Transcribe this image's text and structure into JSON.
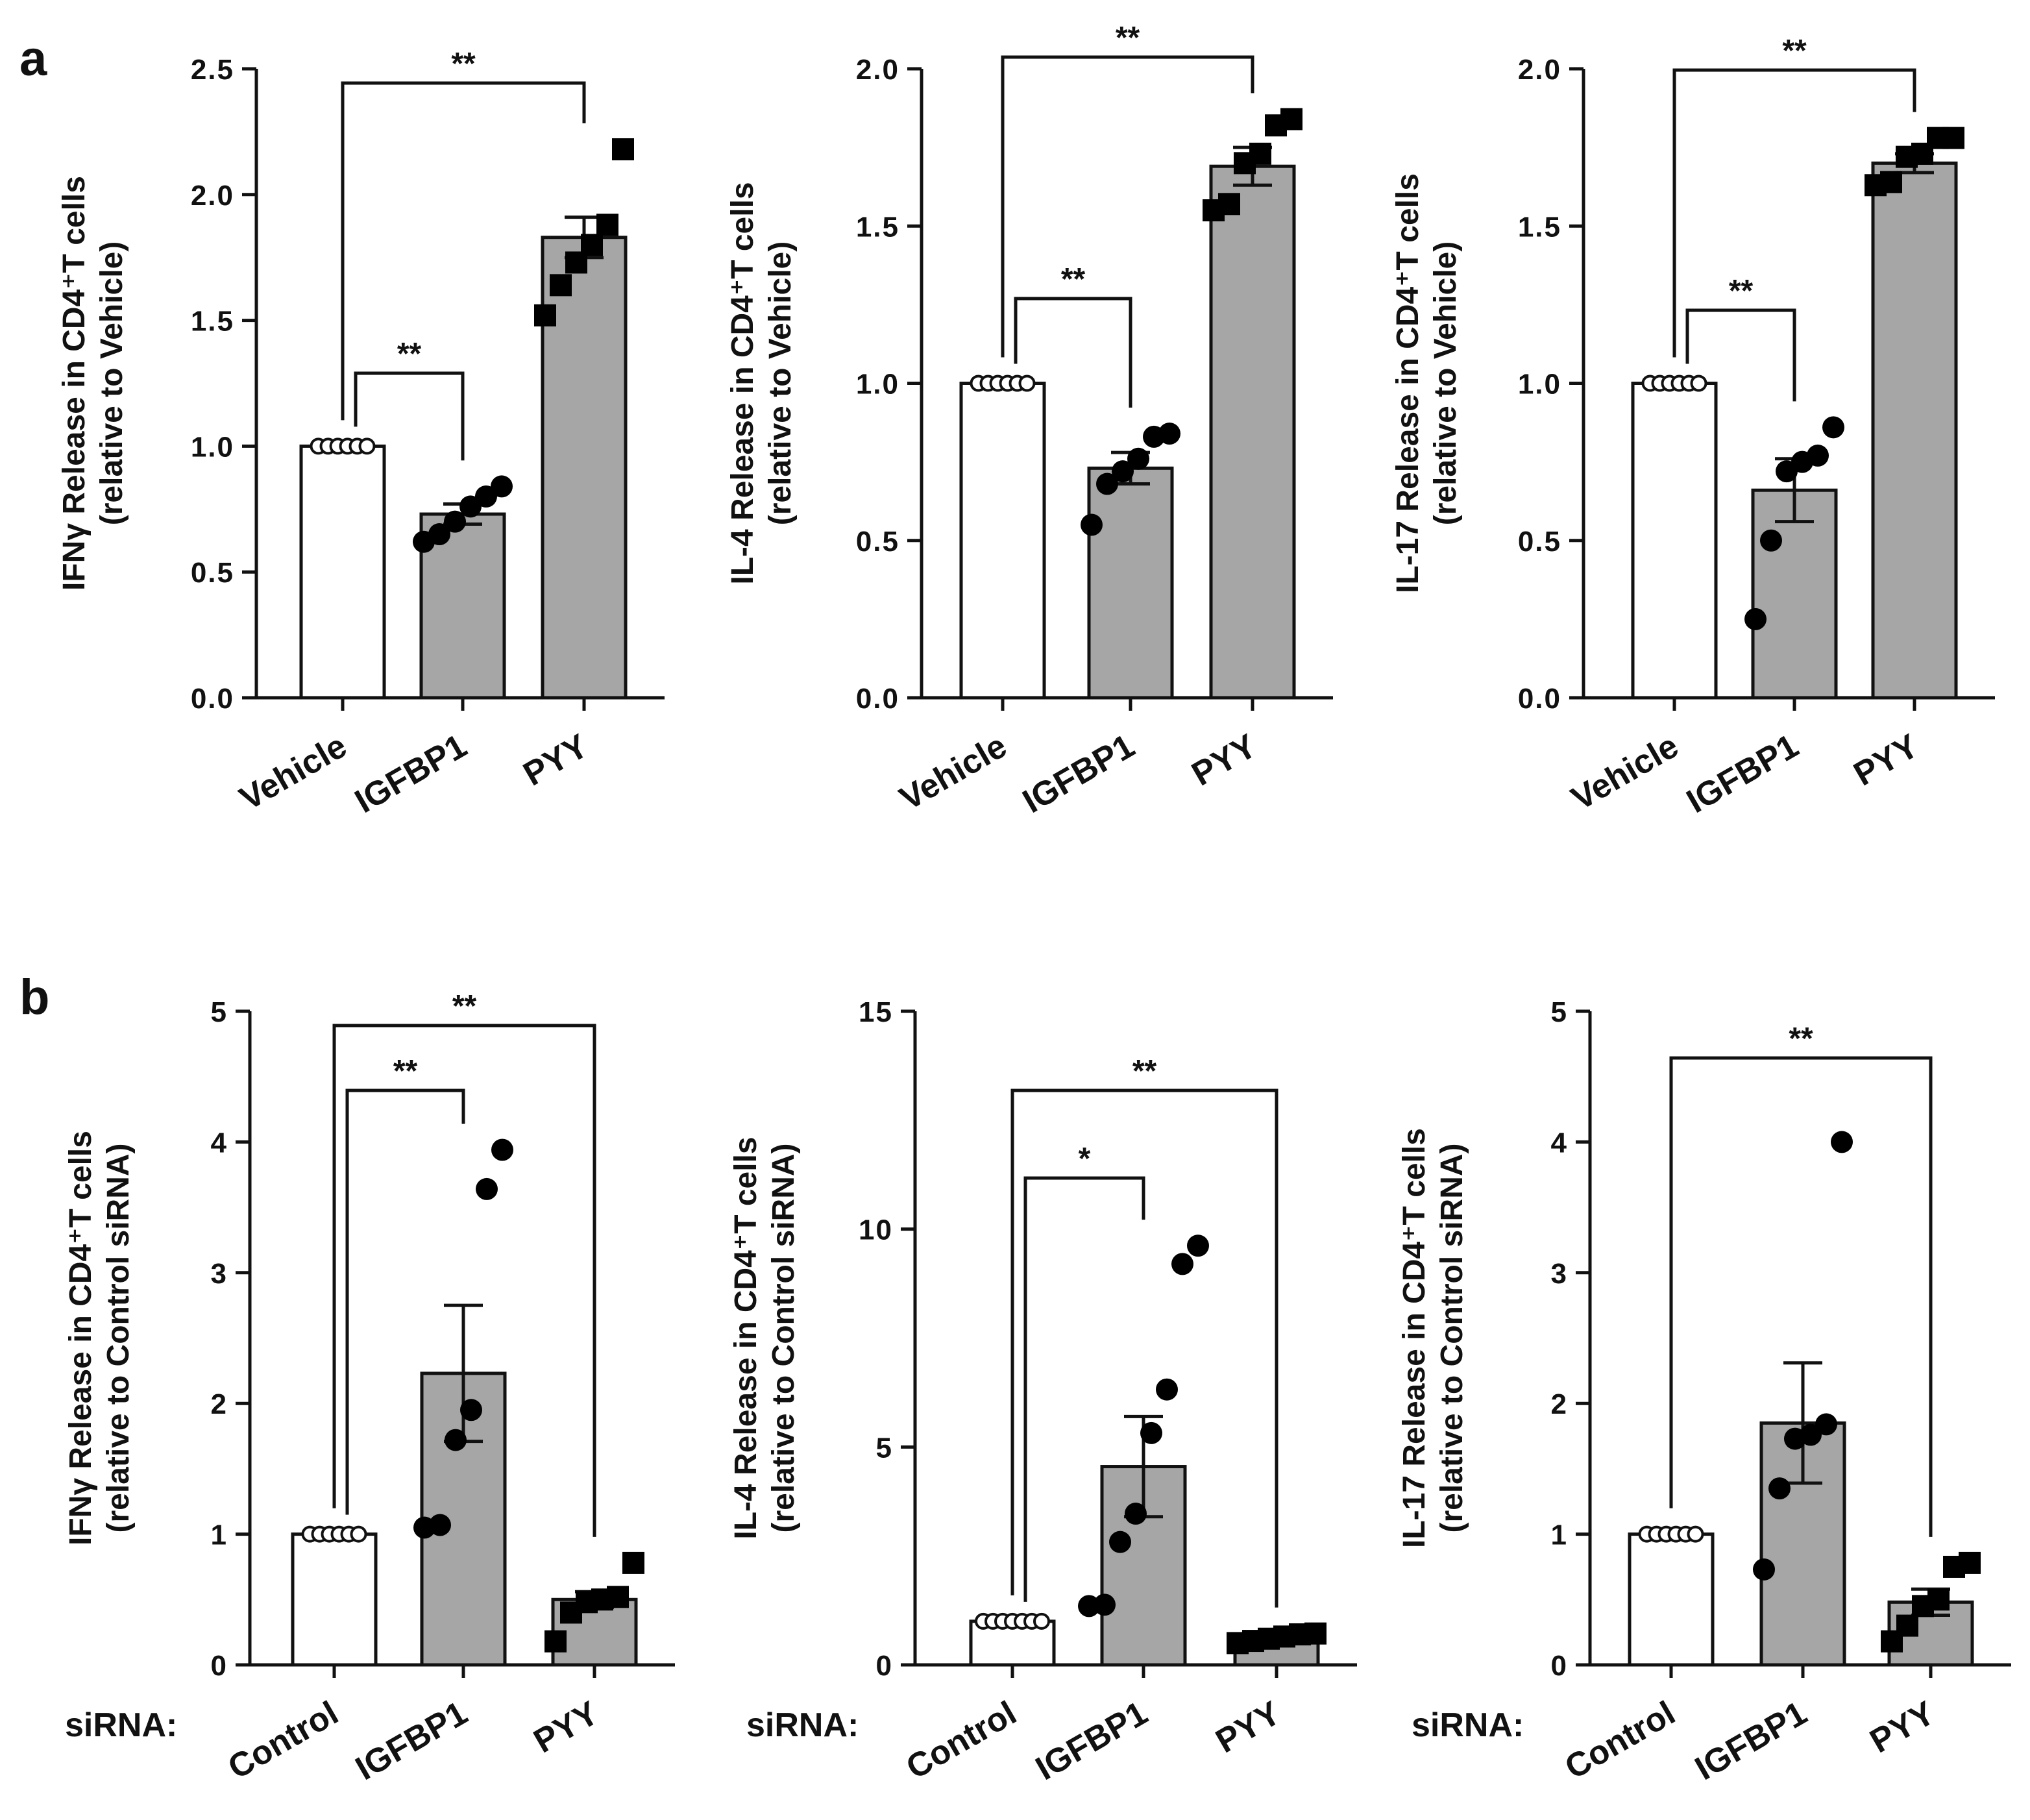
{
  "panels": [
    {
      "letter": "a"
    },
    {
      "letter": "b"
    }
  ],
  "chart_data": [
    {
      "type": "bar",
      "panel": "a",
      "categories": [
        "Vehicle",
        "IGFBP1",
        "PYY"
      ],
      "ylabel": [
        "IFNγ Release in CD4⁺T cells",
        "(relative to Vehicle)"
      ],
      "ylim": [
        0,
        2.5
      ],
      "yticks": [
        "0.0",
        "0.5",
        "1.0",
        "1.5",
        "2.0",
        "2.5"
      ],
      "category_prefix": "",
      "bar_fill": [
        "#ffffff",
        "#a6a6a6",
        "#a6a6a6"
      ],
      "marker": "circle-open-then-square",
      "series": [
        {
          "values": [
            1.0,
            0.73,
            1.83
          ],
          "sem": [
            0,
            0.04,
            0.08
          ],
          "points": [
            [
              1,
              1,
              1,
              1,
              1,
              1
            ],
            [
              0.62,
              0.65,
              0.7,
              0.76,
              0.8,
              0.84
            ],
            [
              1.52,
              1.64,
              1.73,
              1.8,
              1.88,
              2.18
            ]
          ]
        }
      ],
      "significance": [
        {
          "from": 0,
          "to": 1,
          "label": "**"
        },
        {
          "from": 0,
          "to": 2,
          "label": "**"
        }
      ]
    },
    {
      "type": "bar",
      "panel": "a",
      "categories": [
        "Vehicle",
        "IGFBP1",
        "PYY"
      ],
      "ylabel": [
        "IL-4 Release in CD4⁺T cells",
        "(relative to Vehicle)"
      ],
      "ylim": [
        0,
        2.0
      ],
      "yticks": [
        "0.0",
        "0.5",
        "1.0",
        "1.5",
        "2.0"
      ],
      "category_prefix": "",
      "bar_fill": [
        "#ffffff",
        "#a6a6a6",
        "#a6a6a6"
      ],
      "marker": "circle-open-then-square",
      "series": [
        {
          "values": [
            1.0,
            0.73,
            1.69
          ],
          "sem": [
            0,
            0.05,
            0.06
          ],
          "points": [
            [
              1,
              1,
              1,
              1,
              1,
              1
            ],
            [
              0.55,
              0.68,
              0.72,
              0.76,
              0.83,
              0.84
            ],
            [
              1.55,
              1.57,
              1.7,
              1.73,
              1.82,
              1.84
            ]
          ]
        }
      ],
      "significance": [
        {
          "from": 0,
          "to": 1,
          "label": "**"
        },
        {
          "from": 0,
          "to": 2,
          "label": "**"
        }
      ]
    },
    {
      "type": "bar",
      "panel": "a",
      "categories": [
        "Vehicle",
        "IGFBP1",
        "PYY"
      ],
      "ylabel": [
        "IL-17 Release in CD4⁺T cells",
        "(relative to Vehicle)"
      ],
      "ylim": [
        0,
        2.0
      ],
      "yticks": [
        "0.0",
        "0.5",
        "1.0",
        "1.5",
        "2.0"
      ],
      "category_prefix": "",
      "bar_fill": [
        "#ffffff",
        "#a6a6a6",
        "#a6a6a6"
      ],
      "marker": "circle-open-then-square",
      "series": [
        {
          "values": [
            1.0,
            0.66,
            1.7
          ],
          "sem": [
            0,
            0.1,
            0.03
          ],
          "points": [
            [
              1,
              1,
              1,
              1,
              1,
              1
            ],
            [
              0.25,
              0.5,
              0.72,
              0.75,
              0.77,
              0.86
            ],
            [
              1.63,
              1.64,
              1.72,
              1.73,
              1.78,
              1.78
            ]
          ]
        }
      ],
      "significance": [
        {
          "from": 0,
          "to": 1,
          "label": "**"
        },
        {
          "from": 0,
          "to": 2,
          "label": "**"
        }
      ]
    },
    {
      "type": "bar",
      "panel": "b",
      "categories": [
        "Control",
        "IGFBP1",
        "PYY"
      ],
      "ylabel": [
        "IFNγ Release in CD4⁺T cells",
        "(relative to Control siRNA)"
      ],
      "ylim": [
        0,
        5
      ],
      "yticks": [
        "0",
        "1",
        "2",
        "3",
        "4",
        "5"
      ],
      "category_prefix": "siRNA:",
      "bar_fill": [
        "#ffffff",
        "#a6a6a6",
        "#a6a6a6"
      ],
      "marker": "circle-open-then-filled-circle-then-square",
      "series": [
        {
          "values": [
            1.0,
            2.23,
            0.5
          ],
          "sem": [
            0,
            0.52,
            0.06
          ],
          "points": [
            [
              1,
              1,
              1,
              1,
              1,
              1
            ],
            [
              1.05,
              1.07,
              1.72,
              1.95,
              3.64,
              3.94
            ],
            [
              0.18,
              0.4,
              0.48,
              0.5,
              0.52,
              0.78
            ]
          ]
        }
      ],
      "significance": [
        {
          "from": 0,
          "to": 1,
          "label": "**"
        },
        {
          "from": 0,
          "to": 2,
          "label": "**"
        }
      ]
    },
    {
      "type": "bar",
      "panel": "b",
      "categories": [
        "Control",
        "IGFBP1",
        "PYY"
      ],
      "ylabel": [
        "IL-4 Release in CD4⁺T cells",
        "(relative to Control siRNA)"
      ],
      "ylim": [
        0,
        15
      ],
      "yticks": [
        "0",
        "5",
        "10",
        "15"
      ],
      "category_prefix": "siRNA:",
      "bar_fill": [
        "#ffffff",
        "#a6a6a6",
        "#a6a6a6"
      ],
      "marker": "circle-open-then-filled-circle-then-square",
      "series": [
        {
          "values": [
            1.0,
            4.55,
            0.62
          ],
          "sem": [
            0,
            1.15,
            0.05
          ],
          "points": [
            [
              1,
              1,
              1,
              1,
              1,
              1,
              1
            ],
            [
              1.35,
              1.38,
              2.82,
              3.47,
              5.32,
              6.32,
              9.2,
              9.62
            ],
            [
              0.5,
              0.55,
              0.6,
              0.65,
              0.7,
              0.72
            ]
          ]
        }
      ],
      "significance": [
        {
          "from": 0,
          "to": 1,
          "label": "*"
        },
        {
          "from": 0,
          "to": 2,
          "label": "**"
        }
      ]
    },
    {
      "type": "bar",
      "panel": "b",
      "categories": [
        "Control",
        "IGFBP1",
        "PYY"
      ],
      "ylabel": [
        "IL-17 Release in CD4⁺T cells",
        "(relative to Control siRNA)"
      ],
      "ylim": [
        0,
        5
      ],
      "yticks": [
        "0",
        "1",
        "2",
        "3",
        "4",
        "5"
      ],
      "category_prefix": "siRNA:",
      "bar_fill": [
        "#ffffff",
        "#a6a6a6",
        "#a6a6a6"
      ],
      "marker": "circle-open-then-filled-circle-then-square",
      "series": [
        {
          "values": [
            1.0,
            1.85,
            0.48
          ],
          "sem": [
            0,
            0.46,
            0.1
          ],
          "points": [
            [
              1,
              1,
              1,
              1,
              1,
              1
            ],
            [
              0.73,
              1.35,
              1.73,
              1.76,
              1.84,
              4.0
            ],
            [
              0.18,
              0.3,
              0.45,
              0.5,
              0.75,
              0.78
            ]
          ]
        }
      ],
      "significance": [
        {
          "from": 0,
          "to": 2,
          "label": "**"
        }
      ]
    }
  ]
}
